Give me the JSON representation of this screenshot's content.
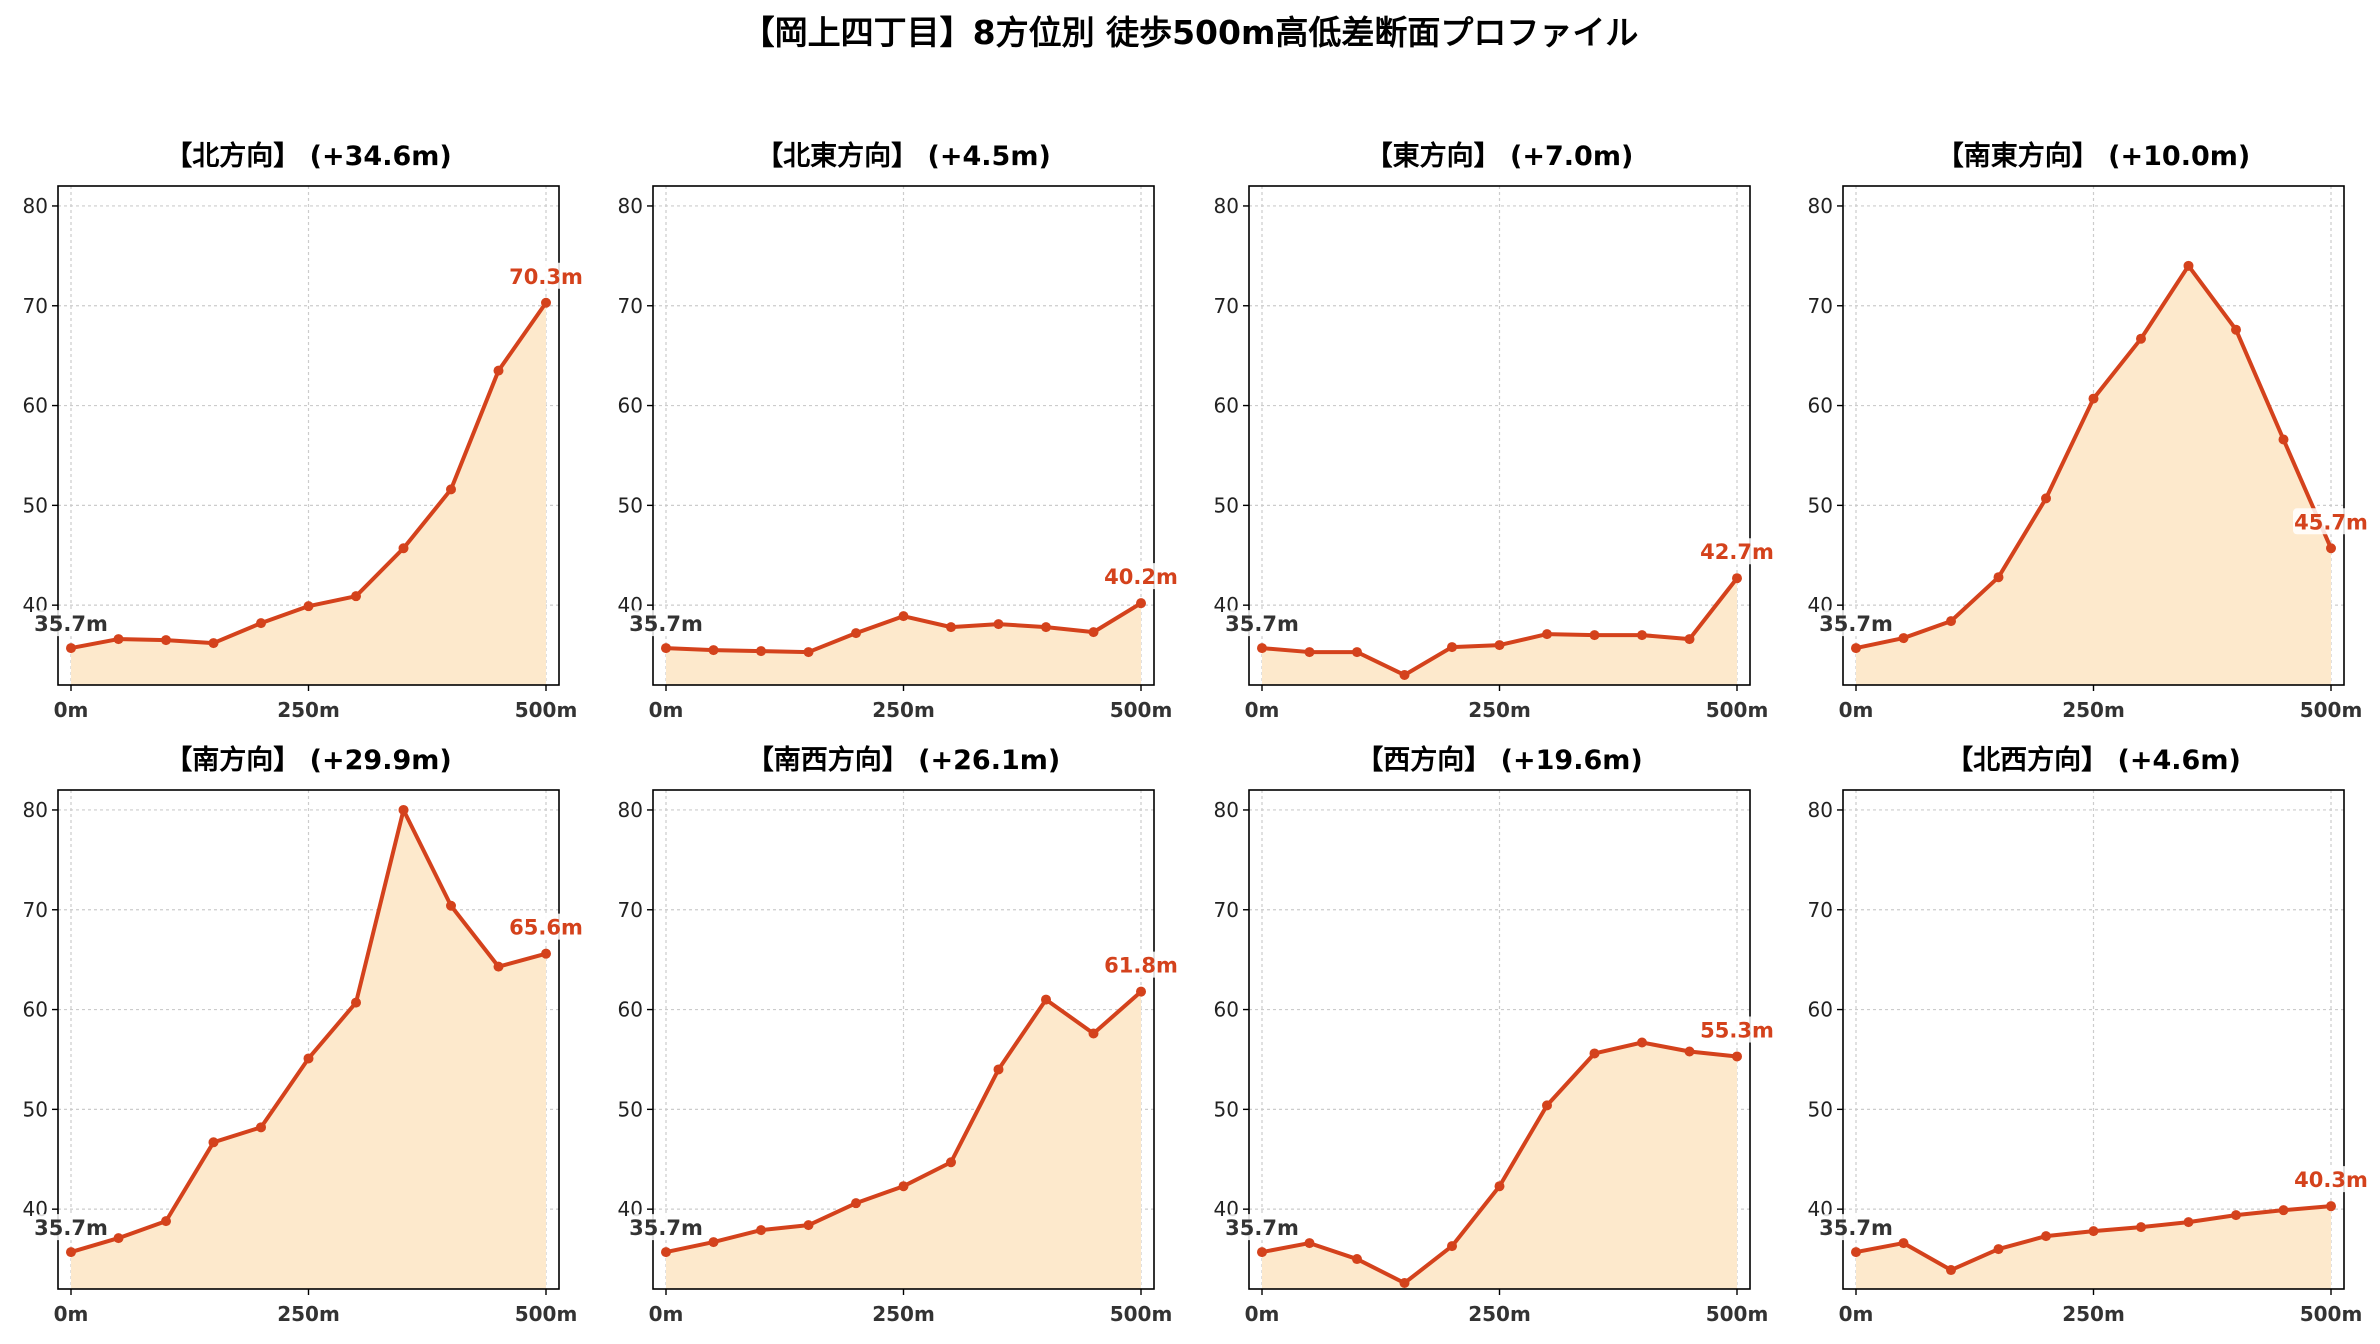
{
  "suptitle": "【岡上四丁目】8方位別 徒歩500m高低差断面プロファイル",
  "colors": {
    "line": "#d4421c",
    "fill": "#fde9cc",
    "start_label": "#333333",
    "end_label": "#d4421c",
    "grid": "#cccccc",
    "axis": "#000000"
  },
  "chart_data": [
    {
      "type": "area",
      "title": "【北方向】 (+34.6m)",
      "x": [
        0,
        50,
        100,
        150,
        200,
        250,
        300,
        350,
        400,
        450,
        500
      ],
      "values": [
        35.7,
        36.6,
        36.5,
        36.2,
        38.2,
        39.9,
        40.9,
        45.7,
        51.6,
        63.5,
        70.3
      ],
      "xlim": [
        0,
        500
      ],
      "ylim": [
        32,
        82
      ],
      "xticks": [
        "0m",
        "250m",
        "500m"
      ],
      "yticks": [
        40,
        50,
        60,
        70,
        80
      ],
      "start_label": "35.7m",
      "end_label": "70.3m",
      "grid": true
    },
    {
      "type": "area",
      "title": "【北東方向】 (+4.5m)",
      "x": [
        0,
        50,
        100,
        150,
        200,
        250,
        300,
        350,
        400,
        450,
        500
      ],
      "values": [
        35.7,
        35.5,
        35.4,
        35.3,
        37.2,
        38.9,
        37.8,
        38.1,
        37.8,
        37.3,
        40.2
      ],
      "xlim": [
        0,
        500
      ],
      "ylim": [
        32,
        82
      ],
      "xticks": [
        "0m",
        "250m",
        "500m"
      ],
      "yticks": [
        40,
        50,
        60,
        70,
        80
      ],
      "start_label": "35.7m",
      "end_label": "40.2m",
      "grid": true
    },
    {
      "type": "area",
      "title": "【東方向】 (+7.0m)",
      "x": [
        0,
        50,
        100,
        150,
        200,
        250,
        300,
        350,
        400,
        450,
        500
      ],
      "values": [
        35.7,
        35.3,
        35.3,
        33.0,
        35.8,
        36.0,
        37.1,
        37.0,
        37.0,
        36.6,
        42.7
      ],
      "xlim": [
        0,
        500
      ],
      "ylim": [
        32,
        82
      ],
      "xticks": [
        "0m",
        "250m",
        "500m"
      ],
      "yticks": [
        40,
        50,
        60,
        70,
        80
      ],
      "start_label": "35.7m",
      "end_label": "42.7m",
      "grid": true
    },
    {
      "type": "area",
      "title": "【南東方向】 (+10.0m)",
      "x": [
        0,
        50,
        100,
        150,
        200,
        250,
        300,
        350,
        400,
        450,
        500
      ],
      "values": [
        35.7,
        36.7,
        38.4,
        42.8,
        50.7,
        60.7,
        66.7,
        74.0,
        67.6,
        56.6,
        45.7
      ],
      "xlim": [
        0,
        500
      ],
      "ylim": [
        32,
        82
      ],
      "xticks": [
        "0m",
        "250m",
        "500m"
      ],
      "yticks": [
        40,
        50,
        60,
        70,
        80
      ],
      "start_label": "35.7m",
      "end_label": "45.7m",
      "grid": true
    },
    {
      "type": "area",
      "title": "【南方向】 (+29.9m)",
      "x": [
        0,
        50,
        100,
        150,
        200,
        250,
        300,
        350,
        400,
        450,
        500
      ],
      "values": [
        35.7,
        37.1,
        38.8,
        46.7,
        48.2,
        55.1,
        60.7,
        80.0,
        70.4,
        64.3,
        65.6
      ],
      "xlim": [
        0,
        500
      ],
      "ylim": [
        32,
        82
      ],
      "xticks": [
        "0m",
        "250m",
        "500m"
      ],
      "yticks": [
        40,
        50,
        60,
        70,
        80
      ],
      "start_label": "35.7m",
      "end_label": "65.6m",
      "grid": true
    },
    {
      "type": "area",
      "title": "【南西方向】 (+26.1m)",
      "x": [
        0,
        50,
        100,
        150,
        200,
        250,
        300,
        350,
        400,
        450,
        500
      ],
      "values": [
        35.7,
        36.7,
        37.9,
        38.4,
        40.6,
        42.3,
        44.7,
        54.0,
        61.0,
        57.6,
        61.8
      ],
      "xlim": [
        0,
        500
      ],
      "ylim": [
        32,
        82
      ],
      "xticks": [
        "0m",
        "250m",
        "500m"
      ],
      "yticks": [
        40,
        50,
        60,
        70,
        80
      ],
      "start_label": "35.7m",
      "end_label": "61.8m",
      "grid": true
    },
    {
      "type": "area",
      "title": "【西方向】 (+19.6m)",
      "x": [
        0,
        50,
        100,
        150,
        200,
        250,
        300,
        350,
        400,
        450,
        500
      ],
      "values": [
        35.7,
        36.6,
        35.0,
        32.6,
        36.3,
        42.3,
        50.4,
        55.6,
        56.7,
        55.8,
        55.3
      ],
      "xlim": [
        0,
        500
      ],
      "ylim": [
        32,
        82
      ],
      "xticks": [
        "0m",
        "250m",
        "500m"
      ],
      "yticks": [
        40,
        50,
        60,
        70,
        80
      ],
      "start_label": "35.7m",
      "end_label": "55.3m",
      "grid": true
    },
    {
      "type": "area",
      "title": "【北西方向】 (+4.6m)",
      "x": [
        0,
        50,
        100,
        150,
        200,
        250,
        300,
        350,
        400,
        450,
        500
      ],
      "values": [
        35.7,
        36.6,
        33.9,
        36.0,
        37.3,
        37.8,
        38.2,
        38.7,
        39.4,
        39.9,
        40.3
      ],
      "xlim": [
        0,
        500
      ],
      "ylim": [
        32,
        82
      ],
      "xticks": [
        "0m",
        "250m",
        "500m"
      ],
      "yticks": [
        40,
        50,
        60,
        70,
        80
      ],
      "start_label": "35.7m",
      "end_label": "40.3m",
      "grid": true
    }
  ]
}
